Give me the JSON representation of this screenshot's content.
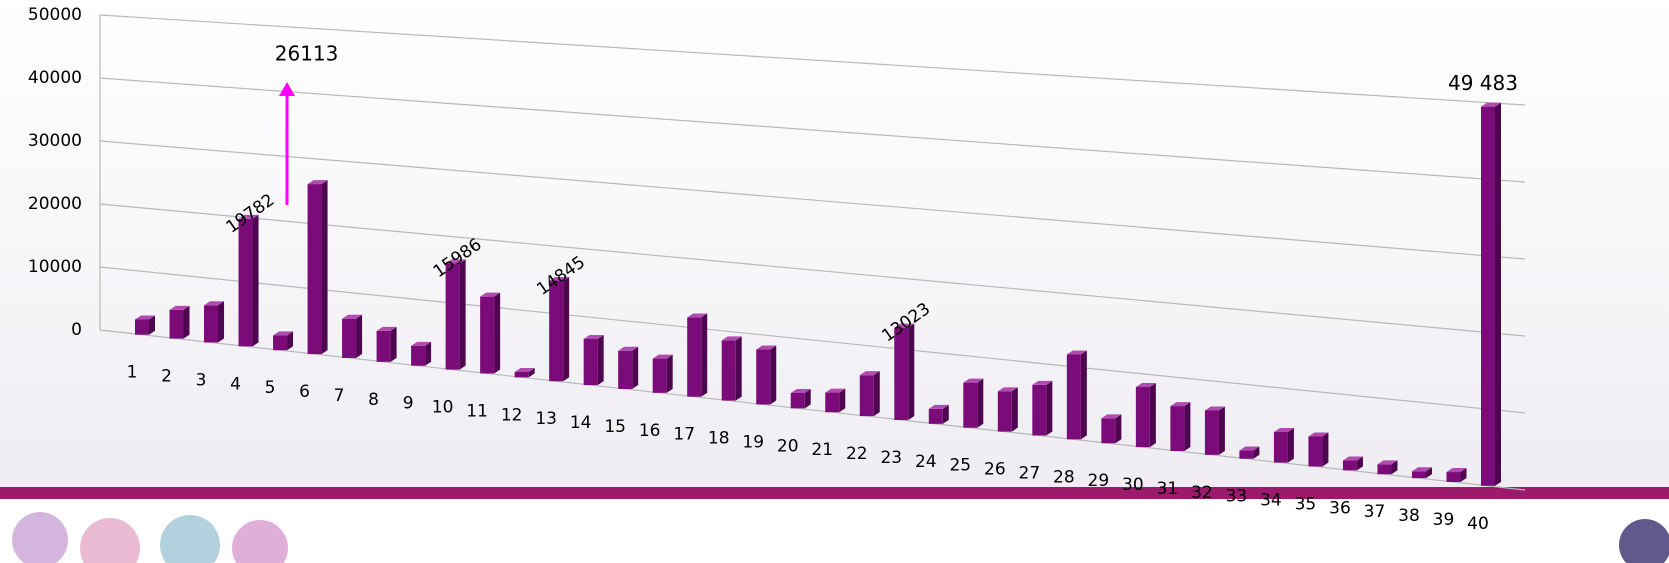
{
  "chart_data": {
    "type": "bar3d",
    "categories": [
      "1",
      "2",
      "3",
      "4",
      "5",
      "6",
      "7",
      "8",
      "9",
      "10",
      "11",
      "12",
      "13",
      "14",
      "15",
      "16",
      "17",
      "18",
      "19",
      "20",
      "21",
      "22",
      "23",
      "24",
      "25",
      "26",
      "27",
      "28",
      "29",
      "30",
      "31",
      "32",
      "33",
      "34",
      "35",
      "36",
      "37",
      "38",
      "39",
      "40"
    ],
    "values": [
      2400,
      4500,
      5800,
      19782,
      2300,
      26113,
      6000,
      4700,
      3000,
      15986,
      11500,
      800,
      14845,
      6800,
      5600,
      5000,
      11500,
      8700,
      7900,
      2200,
      2800,
      5800,
      13023,
      2100,
      6300,
      5600,
      7000,
      11700,
      3400,
      8200,
      6100,
      6000,
      1100,
      4100,
      4000,
      1300,
      1300,
      900,
      1300,
      49483
    ],
    "value_labels": [
      null,
      null,
      null,
      "19782",
      null,
      "26113",
      null,
      null,
      null,
      "15986",
      null,
      null,
      "14845",
      null,
      null,
      null,
      null,
      null,
      null,
      null,
      null,
      null,
      "13023",
      null,
      null,
      null,
      null,
      null,
      null,
      null,
      null,
      null,
      null,
      null,
      null,
      null,
      null,
      null,
      null,
      "49 483"
    ],
    "color": "#7a0b78",
    "ylim": [
      0,
      50000
    ],
    "yticks": [
      0,
      10000,
      20000,
      30000,
      40000,
      50000
    ],
    "grid": true
  }
}
